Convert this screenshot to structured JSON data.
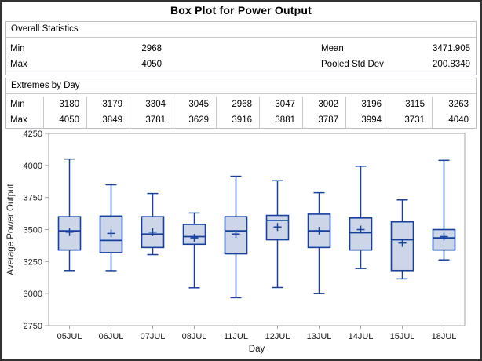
{
  "title": "Box Plot for Power Output",
  "overall_statistics": {
    "header": "Overall Statistics",
    "rows": [
      {
        "label1": "Min",
        "value1": "2968",
        "label2": "Mean",
        "value2": "3471.905"
      },
      {
        "label1": "Max",
        "value1": "4050",
        "label2": "Pooled Std Dev",
        "value2": "200.8349"
      }
    ]
  },
  "extremes_by_day": {
    "header": "Extremes by Day",
    "row_labels": [
      "Min",
      "Max"
    ],
    "min": [
      3180,
      3179,
      3304,
      3045,
      2968,
      3047,
      3002,
      3196,
      3115,
      3263
    ],
    "max": [
      4050,
      3849,
      3781,
      3629,
      3916,
      3881,
      3787,
      3994,
      3731,
      4040
    ]
  },
  "chart_data": {
    "type": "boxplot",
    "title": "Box Plot for Power Output",
    "xlabel": "Day",
    "ylabel": "Average Power Output",
    "ylim": [
      2750,
      4250
    ],
    "ytick_step": 250,
    "grid": false,
    "categories": [
      "05JUL",
      "06JUL",
      "07JUL",
      "08JUL",
      "11JUL",
      "12JUL",
      "13JUL",
      "14JUL",
      "15JUL",
      "18JUL"
    ],
    "series": [
      {
        "day": "05JUL",
        "min": 3180,
        "q1": 3340,
        "median": 3490,
        "q3": 3600,
        "max": 4050,
        "mean": 3480
      },
      {
        "day": "06JUL",
        "min": 3179,
        "q1": 3320,
        "median": 3415,
        "q3": 3605,
        "max": 3849,
        "mean": 3470
      },
      {
        "day": "07JUL",
        "min": 3304,
        "q1": 3360,
        "median": 3465,
        "q3": 3600,
        "max": 3781,
        "mean": 3480
      },
      {
        "day": "08JUL",
        "min": 3045,
        "q1": 3385,
        "median": 3445,
        "q3": 3540,
        "max": 3629,
        "mean": 3435
      },
      {
        "day": "11JUL",
        "min": 2968,
        "q1": 3310,
        "median": 3490,
        "q3": 3600,
        "max": 3916,
        "mean": 3465
      },
      {
        "day": "12JUL",
        "min": 3047,
        "q1": 3420,
        "median": 3570,
        "q3": 3610,
        "max": 3881,
        "mean": 3520
      },
      {
        "day": "13JUL",
        "min": 3002,
        "q1": 3360,
        "median": 3490,
        "q3": 3620,
        "max": 3787,
        "mean": 3490
      },
      {
        "day": "14JUL",
        "min": 3196,
        "q1": 3340,
        "median": 3475,
        "q3": 3590,
        "max": 3994,
        "mean": 3500
      },
      {
        "day": "15JUL",
        "min": 3115,
        "q1": 3180,
        "median": 3420,
        "q3": 3560,
        "max": 3731,
        "mean": 3395
      },
      {
        "day": "18JUL",
        "min": 3263,
        "q1": 3340,
        "median": 3435,
        "q3": 3500,
        "max": 4040,
        "mean": 3445
      }
    ],
    "marker_legend": "plus sign marks day mean"
  },
  "colors": {
    "box_fill": "#CCD6E8",
    "box_stroke": "#16409E",
    "frame": "#A3A3A3",
    "tick_text": "#1A1A1A",
    "panel_border": "#B9BDC4"
  }
}
